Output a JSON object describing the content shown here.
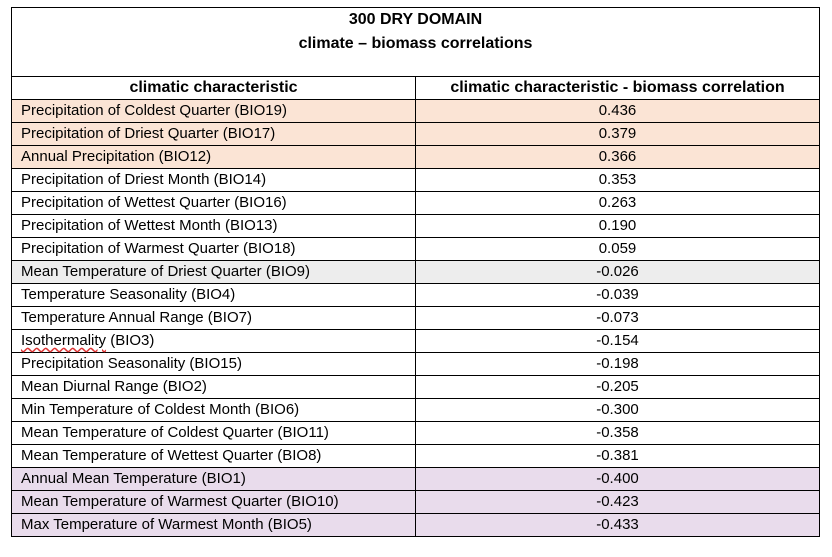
{
  "title": {
    "line1": "300 DRY DOMAIN",
    "line2": "climate – biomass correlations"
  },
  "columns": [
    "climatic characteristic",
    "climatic characteristic - biomass correlation"
  ],
  "rows": [
    {
      "name": "Precipitation of Coldest Quarter (BIO19)",
      "value": "0.436",
      "highlight": "positive"
    },
    {
      "name": "Precipitation of Driest Quarter (BIO17)",
      "value": "0.379",
      "highlight": "positive"
    },
    {
      "name": "Annual Precipitation (BIO12)",
      "value": "0.366",
      "highlight": "positive"
    },
    {
      "name": "Precipitation of Driest Month (BIO14)",
      "value": "0.353",
      "highlight": "none"
    },
    {
      "name": "Precipitation of Wettest Quarter (BIO16)",
      "value": "0.263",
      "highlight": "none"
    },
    {
      "name": "Precipitation of Wettest Month (BIO13)",
      "value": "0.190",
      "highlight": "none"
    },
    {
      "name": "Precipitation of Warmest Quarter (BIO18)",
      "value": "0.059",
      "highlight": "none"
    },
    {
      "name": "Mean Temperature of Driest Quarter (BIO9)",
      "value": "-0.026",
      "highlight": "neutral"
    },
    {
      "name": "Temperature Seasonality (BIO4)",
      "value": "-0.039",
      "highlight": "none"
    },
    {
      "name": "Temperature Annual Range (BIO7)",
      "value": "-0.073",
      "highlight": "none"
    },
    {
      "name": "Isothermality (BIO3)",
      "value": "-0.154",
      "highlight": "none"
    },
    {
      "name": "Precipitation Seasonality (BIO15)",
      "value": "-0.198",
      "highlight": "none"
    },
    {
      "name": "Mean Diurnal Range (BIO2)",
      "value": "-0.205",
      "highlight": "none"
    },
    {
      "name": "Min Temperature of Coldest Month (BIO6)",
      "value": "-0.300",
      "highlight": "none"
    },
    {
      "name": "Mean Temperature of Coldest Quarter (BIO11)",
      "value": "-0.358",
      "highlight": "none"
    },
    {
      "name": "Mean Temperature of Wettest Quarter (BIO8)",
      "value": "-0.381",
      "highlight": "none"
    },
    {
      "name": "Annual Mean Temperature (BIO1)",
      "value": "-0.400",
      "highlight": "negative"
    },
    {
      "name": "Mean Temperature of Warmest Quarter (BIO10)",
      "value": "-0.423",
      "highlight": "negative"
    },
    {
      "name": "Max Temperature of Warmest Month (BIO5)",
      "value": "-0.433",
      "highlight": "negative"
    }
  ],
  "colors": {
    "positive": "#fbe4d5",
    "neutral": "#ededed",
    "negative": "#e9dcec"
  }
}
